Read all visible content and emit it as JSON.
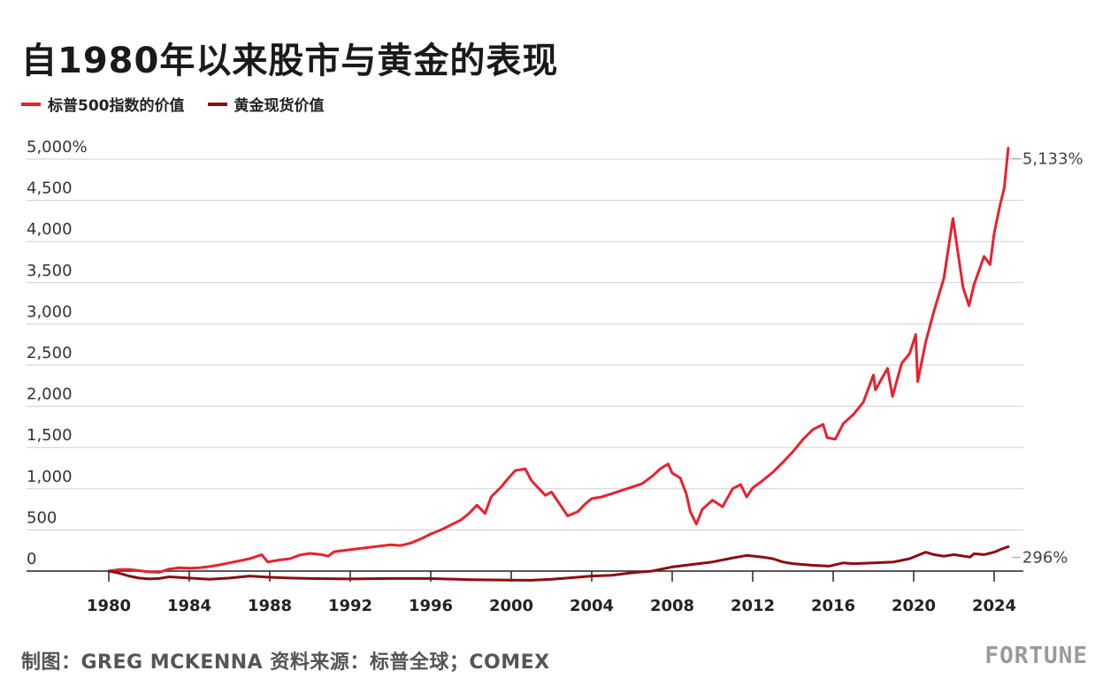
{
  "title": "自1980年以来股市与黄金的表现",
  "legend": [
    {
      "label": "标普500指数的价值",
      "color": "#e8212f"
    },
    {
      "label": "黄金现货价值",
      "color": "#8b0d12"
    }
  ],
  "footer": {
    "source": "制图：GREG MCKENNA 资料来源：标普全球；COMEX",
    "brand": "FORTUNE"
  },
  "chart_data": {
    "type": "line",
    "title": "自1980年以来股市与黄金的表现",
    "xlabel": "",
    "ylabel": "",
    "xlim": [
      1978.7,
      2025.3
    ],
    "ylim": [
      0,
      5000
    ],
    "x_ticks": [
      "1980",
      "1984",
      "1988",
      "1992",
      "1996",
      "2000",
      "2004",
      "2008",
      "2012",
      "2016",
      "2020",
      "2024"
    ],
    "y_ticks": [
      {
        "value": 0,
        "label": "0"
      },
      {
        "value": 500,
        "label": "500"
      },
      {
        "value": 1000,
        "label": "1,000"
      },
      {
        "value": 1500,
        "label": "1,500"
      },
      {
        "value": 2000,
        "label": "2,000"
      },
      {
        "value": 2500,
        "label": "2,500"
      },
      {
        "value": 3000,
        "label": "3,000"
      },
      {
        "value": 3500,
        "label": "3,500"
      },
      {
        "value": 4000,
        "label": "4,000"
      },
      {
        "value": 4500,
        "label": "4,500"
      },
      {
        "value": 5000,
        "label": "5,000%"
      }
    ],
    "grid": true,
    "legend_position": "top-left",
    "series": [
      {
        "name": "标普500指数的价值",
        "color": "#e8212f",
        "end_label": "5,133%",
        "points": [
          [
            1980.0,
            0
          ],
          [
            1980.5,
            18
          ],
          [
            1981.0,
            20
          ],
          [
            1981.5,
            5
          ],
          [
            1982.0,
            -10
          ],
          [
            1982.5,
            -15
          ],
          [
            1983.0,
            25
          ],
          [
            1983.5,
            40
          ],
          [
            1984.0,
            35
          ],
          [
            1984.5,
            40
          ],
          [
            1985.0,
            55
          ],
          [
            1985.5,
            75
          ],
          [
            1986.0,
            100
          ],
          [
            1986.5,
            125
          ],
          [
            1987.0,
            150
          ],
          [
            1987.6,
            200
          ],
          [
            1987.9,
            110
          ],
          [
            1988.5,
            135
          ],
          [
            1989.0,
            150
          ],
          [
            1989.5,
            195
          ],
          [
            1990.0,
            215
          ],
          [
            1990.6,
            200
          ],
          [
            1990.9,
            180
          ],
          [
            1991.2,
            235
          ],
          [
            1992.0,
            260
          ],
          [
            1993.0,
            290
          ],
          [
            1994.0,
            320
          ],
          [
            1994.5,
            310
          ],
          [
            1995.0,
            340
          ],
          [
            1995.5,
            390
          ],
          [
            1996.0,
            450
          ],
          [
            1996.6,
            510
          ],
          [
            1997.0,
            560
          ],
          [
            1997.5,
            620
          ],
          [
            1997.9,
            700
          ],
          [
            1998.3,
            800
          ],
          [
            1998.7,
            700
          ],
          [
            1999.0,
            900
          ],
          [
            1999.5,
            1020
          ],
          [
            1999.8,
            1110
          ],
          [
            2000.2,
            1220
          ],
          [
            2000.7,
            1240
          ],
          [
            2001.0,
            1100
          ],
          [
            2001.3,
            1020
          ],
          [
            2001.7,
            920
          ],
          [
            2002.0,
            960
          ],
          [
            2002.5,
            780
          ],
          [
            2002.8,
            670
          ],
          [
            2003.3,
            720
          ],
          [
            2003.7,
            820
          ],
          [
            2004.0,
            880
          ],
          [
            2004.5,
            900
          ],
          [
            2005.0,
            940
          ],
          [
            2005.5,
            980
          ],
          [
            2006.0,
            1020
          ],
          [
            2006.5,
            1060
          ],
          [
            2007.0,
            1150
          ],
          [
            2007.4,
            1240
          ],
          [
            2007.8,
            1300
          ],
          [
            2008.0,
            1190
          ],
          [
            2008.4,
            1130
          ],
          [
            2008.7,
            940
          ],
          [
            2008.9,
            720
          ],
          [
            2009.2,
            570
          ],
          [
            2009.5,
            750
          ],
          [
            2010.0,
            860
          ],
          [
            2010.5,
            780
          ],
          [
            2011.0,
            1000
          ],
          [
            2011.4,
            1050
          ],
          [
            2011.7,
            900
          ],
          [
            2012.0,
            1010
          ],
          [
            2012.5,
            1100
          ],
          [
            2013.0,
            1200
          ],
          [
            2013.5,
            1320
          ],
          [
            2014.0,
            1450
          ],
          [
            2014.5,
            1600
          ],
          [
            2015.0,
            1720
          ],
          [
            2015.5,
            1780
          ],
          [
            2015.7,
            1620
          ],
          [
            2016.1,
            1600
          ],
          [
            2016.5,
            1790
          ],
          [
            2017.0,
            1900
          ],
          [
            2017.5,
            2050
          ],
          [
            2018.0,
            2380
          ],
          [
            2018.1,
            2200
          ],
          [
            2018.7,
            2460
          ],
          [
            2018.95,
            2120
          ],
          [
            2019.4,
            2520
          ],
          [
            2019.8,
            2640
          ],
          [
            2020.1,
            2870
          ],
          [
            2020.2,
            2300
          ],
          [
            2020.6,
            2780
          ],
          [
            2021.0,
            3150
          ],
          [
            2021.5,
            3550
          ],
          [
            2021.95,
            4280
          ],
          [
            2022.45,
            3450
          ],
          [
            2022.75,
            3220
          ],
          [
            2023.0,
            3480
          ],
          [
            2023.5,
            3820
          ],
          [
            2023.8,
            3720
          ],
          [
            2024.0,
            4100
          ],
          [
            2024.3,
            4450
          ],
          [
            2024.5,
            4650
          ],
          [
            2024.7,
            5133
          ]
        ]
      },
      {
        "name": "黄金现货价值",
        "color": "#8b0d12",
        "end_label": "296%",
        "points": [
          [
            1980.0,
            0
          ],
          [
            1980.5,
            -25
          ],
          [
            1981.0,
            -60
          ],
          [
            1981.5,
            -85
          ],
          [
            1982.0,
            -95
          ],
          [
            1982.5,
            -90
          ],
          [
            1983.0,
            -70
          ],
          [
            1984.0,
            -85
          ],
          [
            1985.0,
            -100
          ],
          [
            1986.0,
            -85
          ],
          [
            1987.0,
            -60
          ],
          [
            1988.0,
            -75
          ],
          [
            1989.0,
            -85
          ],
          [
            1990.0,
            -90
          ],
          [
            1992.0,
            -95
          ],
          [
            1994.0,
            -90
          ],
          [
            1996.0,
            -90
          ],
          [
            1998.0,
            -105
          ],
          [
            2000.0,
            -110
          ],
          [
            2001.0,
            -112
          ],
          [
            2002.0,
            -100
          ],
          [
            2003.0,
            -80
          ],
          [
            2004.0,
            -60
          ],
          [
            2005.0,
            -50
          ],
          [
            2006.0,
            -20
          ],
          [
            2007.0,
            0
          ],
          [
            2008.0,
            50
          ],
          [
            2009.0,
            80
          ],
          [
            2010.0,
            110
          ],
          [
            2011.0,
            160
          ],
          [
            2011.7,
            190
          ],
          [
            2012.5,
            170
          ],
          [
            2013.0,
            150
          ],
          [
            2013.5,
            110
          ],
          [
            2014.0,
            90
          ],
          [
            2015.0,
            70
          ],
          [
            2015.8,
            60
          ],
          [
            2016.5,
            100
          ],
          [
            2017.0,
            90
          ],
          [
            2018.0,
            100
          ],
          [
            2019.0,
            110
          ],
          [
            2019.8,
            150
          ],
          [
            2020.6,
            230
          ],
          [
            2021.0,
            200
          ],
          [
            2021.5,
            180
          ],
          [
            2022.0,
            200
          ],
          [
            2022.8,
            170
          ],
          [
            2023.0,
            210
          ],
          [
            2023.5,
            200
          ],
          [
            2024.0,
            230
          ],
          [
            2024.4,
            270
          ],
          [
            2024.7,
            296
          ]
        ]
      }
    ]
  }
}
